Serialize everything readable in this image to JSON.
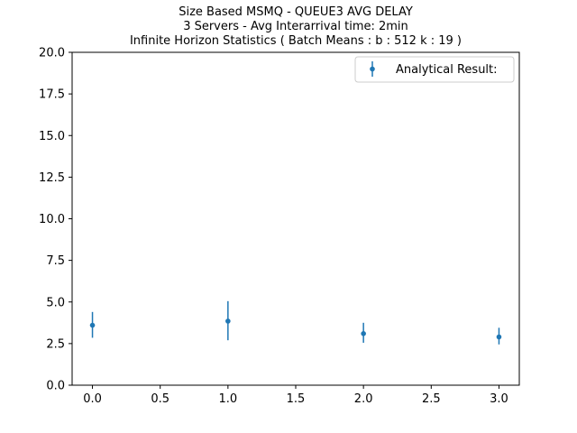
{
  "chart_data": {
    "type": "scatter",
    "title_lines": [
      "Size Based MSMQ - QUEUE3 AVG DELAY",
      "3 Servers -  Avg Interarrival time: 2min",
      "Infinite Horizon Statistics ( Batch Means : b : 512  k : 19 )"
    ],
    "xlabel": "",
    "ylabel": "",
    "xlim": [
      -0.15,
      3.15
    ],
    "ylim": [
      0.0,
      20.0
    ],
    "xticks": [
      "0.0",
      "0.5",
      "1.0",
      "1.5",
      "2.0",
      "2.5",
      "3.0"
    ],
    "xtick_values": [
      0.0,
      0.5,
      1.0,
      1.5,
      2.0,
      2.5,
      3.0
    ],
    "yticks": [
      "0.0",
      "2.5",
      "5.0",
      "7.5",
      "10.0",
      "12.5",
      "15.0",
      "17.5",
      "20.0"
    ],
    "ytick_values": [
      0.0,
      2.5,
      5.0,
      7.5,
      10.0,
      12.5,
      15.0,
      17.5,
      20.0
    ],
    "grid": false,
    "legend_position": "upper right",
    "series": [
      {
        "name": "Analytical Result:",
        "color": "#1f77b4",
        "marker": "circle",
        "points": [
          {
            "x": 0,
            "y": 3.6,
            "err_low": 2.85,
            "err_high": 4.4
          },
          {
            "x": 1,
            "y": 3.85,
            "err_low": 2.7,
            "err_high": 5.05
          },
          {
            "x": 2,
            "y": 3.1,
            "err_low": 2.55,
            "err_high": 3.75
          },
          {
            "x": 3,
            "y": 2.9,
            "err_low": 2.45,
            "err_high": 3.45
          }
        ]
      }
    ]
  }
}
